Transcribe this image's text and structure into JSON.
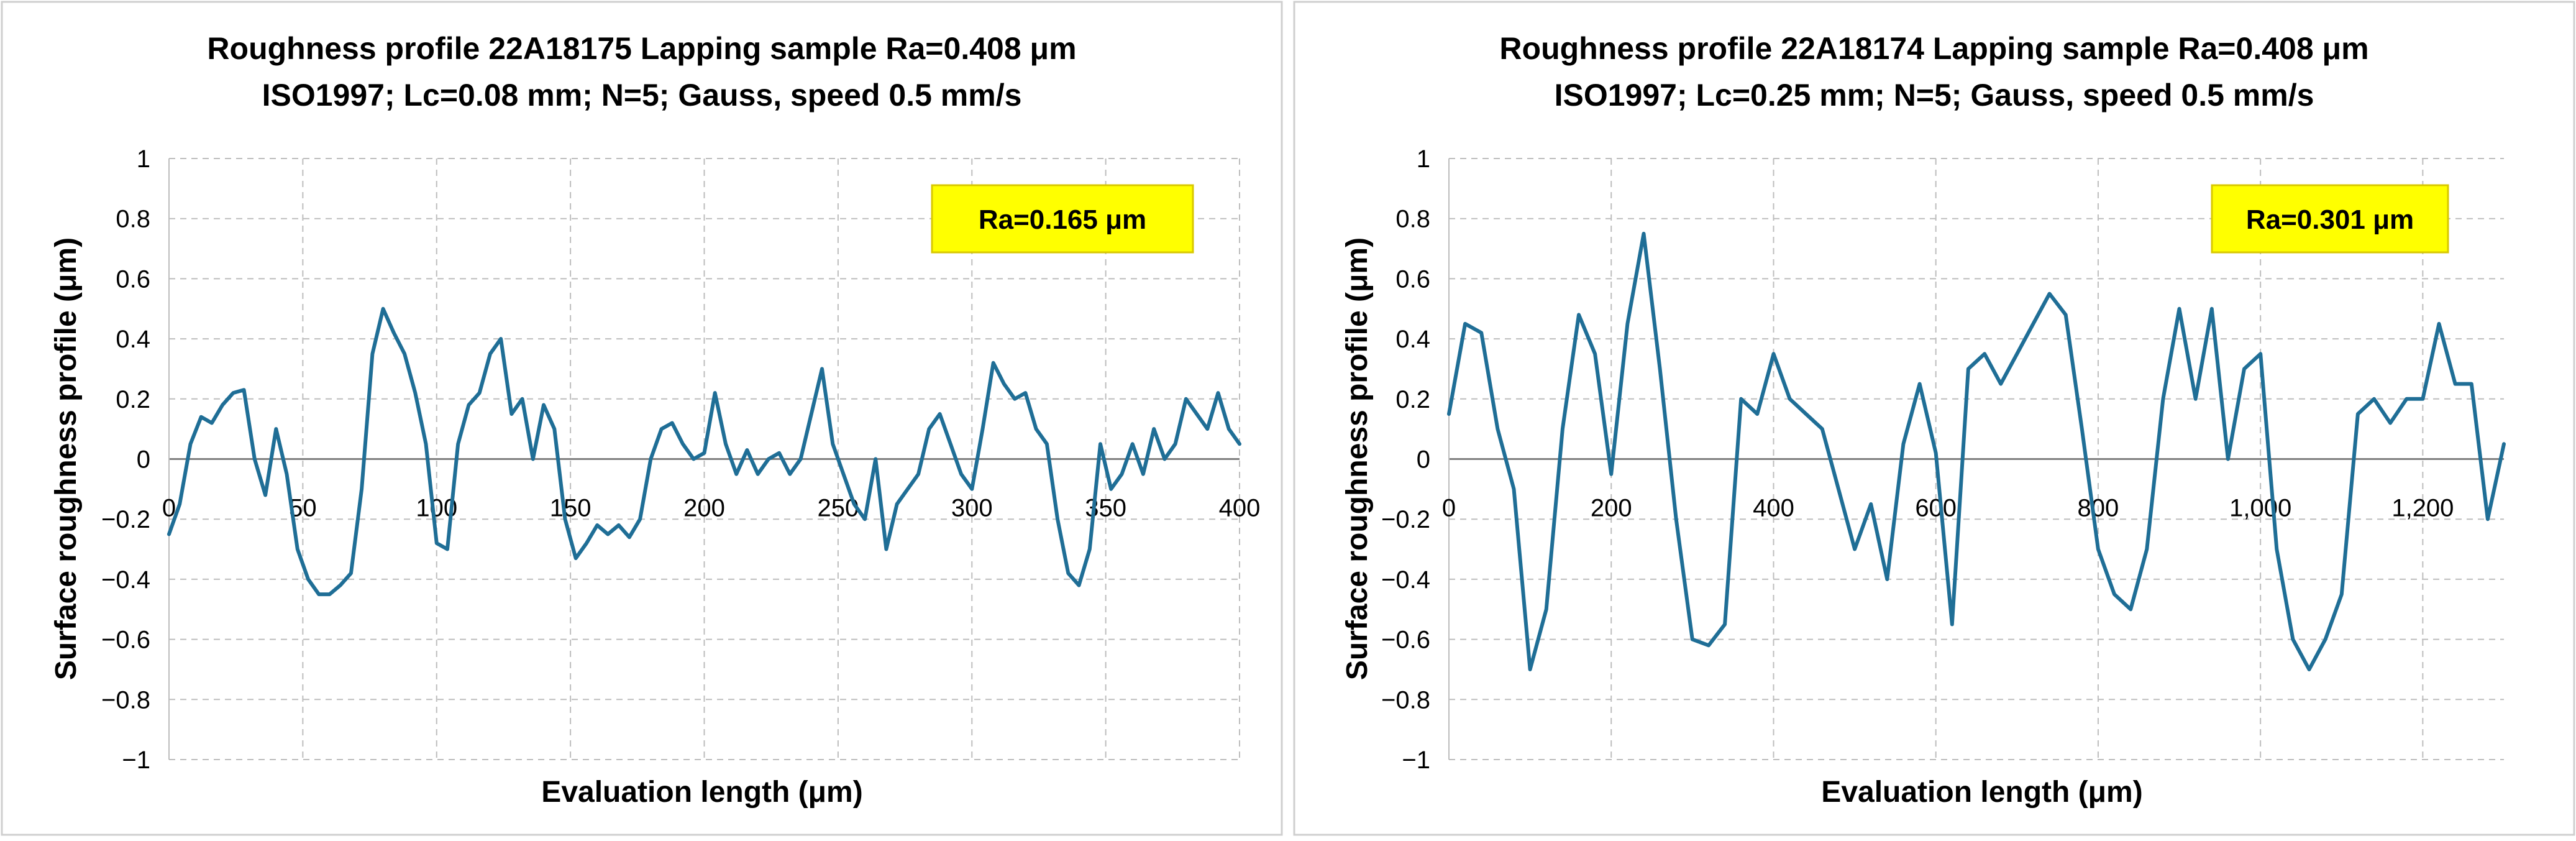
{
  "chart_data": [
    {
      "type": "line",
      "title": "Roughness profile 22A18175 Lapping sample Ra=0.408 μm",
      "subtitle": "ISO1997; Lc=0.08 mm; N=5; Gauss,  speed 0.5 mm/s",
      "xlabel": "Evaluation  length (μm)",
      "ylabel": "Surface roughness profile (μm)",
      "annotation": "Ra=0.165 μm",
      "xlim": [
        0,
        400
      ],
      "ylim": [
        -1,
        1
      ],
      "x_ticks": [
        "0",
        "50",
        "100",
        "150",
        "200",
        "250",
        "300",
        "350",
        "400"
      ],
      "y_ticks": [
        "1",
        "0.8",
        "0.6",
        "0.4",
        "0.2",
        "0",
        "−0.2",
        "−0.4",
        "−0.6",
        "−0.8",
        "−1"
      ],
      "grid": true,
      "line_color": "#1f6e96",
      "series": [
        {
          "x": [
            0,
            4,
            8,
            12,
            16,
            20,
            24,
            28,
            32,
            36,
            40,
            44,
            48,
            52,
            56,
            60,
            64,
            68,
            72,
            76,
            80,
            84,
            88,
            92,
            96,
            100,
            104,
            108,
            112,
            116,
            120,
            124,
            128,
            132,
            136,
            140,
            144,
            148,
            152,
            156,
            160,
            164,
            168,
            172,
            176,
            180,
            184,
            188,
            192,
            196,
            200,
            204,
            208,
            212,
            216,
            220,
            224,
            228,
            232,
            236,
            240,
            244,
            248,
            252,
            256,
            260,
            264,
            268,
            272,
            276,
            280,
            284,
            288,
            292,
            296,
            300,
            304,
            308,
            312,
            316,
            320,
            324,
            328,
            332,
            336,
            340,
            344,
            348,
            352,
            356,
            360,
            364,
            368,
            372,
            376,
            380,
            384,
            388,
            392,
            396,
            400
          ],
          "y": [
            -0.25,
            -0.15,
            0.05,
            0.14,
            0.12,
            0.18,
            0.22,
            0.23,
            0.0,
            -0.12,
            0.1,
            -0.05,
            -0.3,
            -0.4,
            -0.45,
            -0.45,
            -0.42,
            -0.38,
            -0.1,
            0.35,
            0.5,
            0.42,
            0.35,
            0.22,
            0.05,
            -0.28,
            -0.3,
            0.05,
            0.18,
            0.22,
            0.35,
            0.4,
            0.15,
            0.2,
            0.0,
            0.18,
            0.1,
            -0.2,
            -0.33,
            -0.28,
            -0.22,
            -0.25,
            -0.22,
            -0.26,
            -0.2,
            0.0,
            0.1,
            0.12,
            0.05,
            0.0,
            0.02,
            0.22,
            0.05,
            -0.05,
            0.03,
            -0.05,
            0.0,
            0.02,
            -0.05,
            0.0,
            0.15,
            0.3,
            0.05,
            -0.05,
            -0.15,
            -0.2,
            0.0,
            -0.3,
            -0.15,
            -0.1,
            -0.05,
            0.1,
            0.15,
            0.05,
            -0.05,
            -0.1,
            0.1,
            0.32,
            0.25,
            0.2,
            0.22,
            0.1,
            0.05,
            -0.2,
            -0.38,
            -0.42,
            -0.3,
            0.05,
            -0.1,
            -0.05,
            0.05,
            -0.05,
            0.1,
            0.0,
            0.05,
            0.2,
            0.15,
            0.1,
            0.22,
            0.1,
            0.05
          ],
          "note_drop_last_value": false
        }
      ]
    },
    {
      "type": "line",
      "title": "Roughness profile 22A18174 Lapping sample Ra=0.408 μm",
      "subtitle": "ISO1997; Lc=0.25 mm; N=5; Gauss,  speed 0.5 mm/s",
      "xlabel": "Evaluation  length (μm)",
      "ylabel": "Surface roughness profile (μm)",
      "annotation": "Ra=0.301 μm",
      "xlim": [
        0,
        1300
      ],
      "ylim": [
        -1,
        1
      ],
      "x_ticks": [
        "0",
        "200",
        "400",
        "600",
        "800",
        "1,000",
        "1,200"
      ],
      "y_ticks": [
        "1",
        "0.8",
        "0.6",
        "0.4",
        "0.2",
        "0",
        "−0.2",
        "−0.4",
        "−0.6",
        "−0.8",
        "−1"
      ],
      "grid": true,
      "line_color": "#1f6e96",
      "series": [
        {
          "x": [
            0,
            20,
            40,
            60,
            80,
            100,
            120,
            140,
            160,
            180,
            200,
            220,
            240,
            260,
            280,
            300,
            320,
            340,
            360,
            380,
            400,
            420,
            440,
            460,
            480,
            500,
            520,
            540,
            560,
            580,
            600,
            620,
            640,
            660,
            680,
            700,
            720,
            740,
            760,
            780,
            800,
            820,
            840,
            860,
            880,
            900,
            920,
            940,
            960,
            980,
            1000,
            1020,
            1040,
            1060,
            1080,
            1100,
            1120,
            1140,
            1160,
            1180,
            1200,
            1220,
            1240,
            1260,
            1280,
            1300
          ],
          "y": [
            0.15,
            0.45,
            0.42,
            0.1,
            -0.1,
            -0.7,
            -0.5,
            0.1,
            0.48,
            0.35,
            -0.05,
            0.45,
            0.75,
            0.3,
            -0.2,
            -0.6,
            -0.62,
            -0.55,
            0.2,
            0.15,
            0.35,
            0.2,
            0.15,
            0.1,
            -0.1,
            -0.3,
            -0.15,
            -0.4,
            0.05,
            0.25,
            0.02,
            -0.55,
            0.3,
            0.35,
            0.25,
            0.35,
            0.45,
            0.55,
            0.48,
            0.1,
            -0.3,
            -0.45,
            -0.5,
            -0.3,
            0.2,
            0.5,
            0.2,
            0.5,
            0.0,
            0.3,
            0.35,
            -0.3,
            -0.6,
            -0.7,
            -0.6,
            -0.45,
            0.15,
            0.2,
            0.12,
            0.2,
            0.2,
            0.45,
            0.25,
            0.25,
            -0.2,
            0.05
          ]
        }
      ]
    }
  ]
}
